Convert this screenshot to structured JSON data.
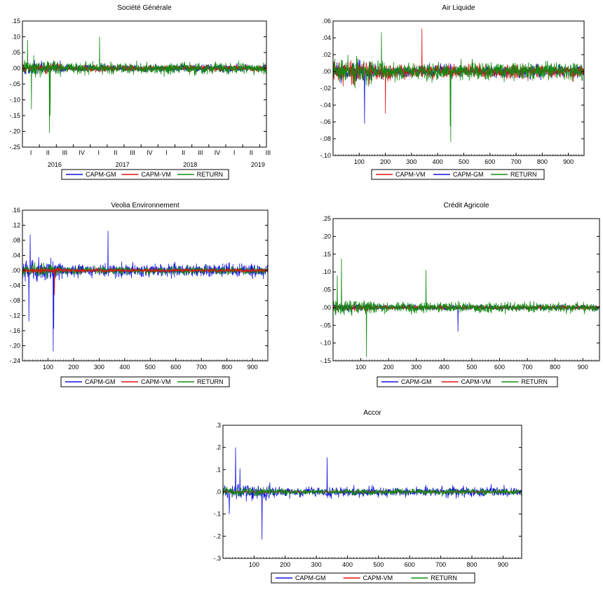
{
  "colors": {
    "CAPM-GM": "#1212e0",
    "CAPM-VM": "#e01010",
    "RETURN": "#118a11"
  },
  "chart_data": [
    {
      "type": "line",
      "title": "Société Générale",
      "ylim": [
        -0.25,
        0.15
      ],
      "y_ticks": [
        ".15",
        ".10",
        ".05",
        ".00",
        "-.05",
        "-.10",
        "-.15",
        "-.20",
        "-.25"
      ],
      "x_quarter_labels": [
        "I",
        "II",
        "III",
        "IV",
        "I",
        "II",
        "III",
        "IV",
        "I",
        "II",
        "III",
        "IV",
        "I",
        "II",
        "III"
      ],
      "x_year_labels": [
        "2016",
        "2017",
        "2018",
        "2019"
      ],
      "legend": [
        "CAPM-GM",
        "CAPM-VM",
        "RETURN"
      ],
      "series_order": [
        "CAPM-GM",
        "CAPM-VM",
        "RETURN"
      ],
      "n": 950,
      "spikes": [
        {
          "series": "RETURN",
          "x": 105,
          "y": -0.205
        },
        {
          "series": "RETURN",
          "x": 108,
          "y": -0.15
        },
        {
          "series": "RETURN",
          "x": 35,
          "y": -0.13
        },
        {
          "series": "RETURN",
          "x": 300,
          "y": 0.1
        },
        {
          "series": "RETURN",
          "x": 20,
          "y": 0.09
        }
      ]
    },
    {
      "type": "line",
      "title": "Air Liquide",
      "ylim": [
        -0.1,
        0.06
      ],
      "y_ticks": [
        ".06",
        ".04",
        ".02",
        ".00",
        "-.02",
        "-.04",
        "-.06",
        "-.08",
        "-.10"
      ],
      "x_ticks": [
        "100",
        "200",
        "300",
        "400",
        "500",
        "600",
        "700",
        "800",
        "900"
      ],
      "xlim": [
        0,
        960
      ],
      "legend": [
        "CAPM-VM",
        "CAPM-GM",
        "RETURN"
      ],
      "series_order": [
        "CAPM-GM",
        "CAPM-VM",
        "RETURN"
      ],
      "n": 950,
      "spikes": [
        {
          "series": "RETURN",
          "x": 450,
          "y": -0.084
        },
        {
          "series": "RETURN",
          "x": 448,
          "y": -0.065
        },
        {
          "series": "CAPM-GM",
          "x": 120,
          "y": -0.062
        },
        {
          "series": "CAPM-VM",
          "x": 340,
          "y": 0.051
        },
        {
          "series": "RETURN",
          "x": 185,
          "y": 0.047
        },
        {
          "series": "CAPM-VM",
          "x": 200,
          "y": -0.05
        }
      ]
    },
    {
      "type": "line",
      "title": "Veolia Environnement",
      "ylim": [
        -0.24,
        0.16
      ],
      "y_ticks": [
        ".16",
        ".12",
        ".08",
        ".04",
        ".00",
        "-.04",
        "-.08",
        "-.12",
        "-.16",
        "-.20",
        "-.24"
      ],
      "x_ticks": [
        "100",
        "200",
        "300",
        "400",
        "500",
        "600",
        "700",
        "800",
        "900"
      ],
      "xlim": [
        0,
        960
      ],
      "legend": [
        "CAPM-GM",
        "CAPM-VM",
        "RETURN"
      ],
      "series_order": [
        "CAPM-GM",
        "RETURN",
        "CAPM-VM"
      ],
      "n": 950,
      "spikes": [
        {
          "series": "CAPM-GM",
          "x": 120,
          "y": -0.215
        },
        {
          "series": "CAPM-GM",
          "x": 122,
          "y": -0.155
        },
        {
          "series": "CAPM-GM",
          "x": 25,
          "y": -0.135
        },
        {
          "series": "CAPM-GM",
          "x": 335,
          "y": 0.105
        },
        {
          "series": "CAPM-GM",
          "x": 30,
          "y": 0.095
        },
        {
          "series": "CAPM-VM",
          "x": 125,
          "y": -0.065
        }
      ]
    },
    {
      "type": "line",
      "title": "Crédit Agricole",
      "ylim": [
        -0.15,
        0.25
      ],
      "y_ticks": [
        ".25",
        ".20",
        ".15",
        ".10",
        ".05",
        ".00",
        "-.05",
        "-.10",
        "-.15"
      ],
      "x_ticks": [
        "100",
        "200",
        "300",
        "400",
        "500",
        "600",
        "700",
        "800",
        "900"
      ],
      "xlim": [
        0,
        960
      ],
      "legend": [
        "CAPM-GM",
        "CAPM-VM",
        "RETURN"
      ],
      "series_order": [
        "CAPM-GM",
        "CAPM-VM",
        "RETURN"
      ],
      "n": 950,
      "spikes": [
        {
          "series": "RETURN",
          "x": 30,
          "y": 0.138
        },
        {
          "series": "RETURN",
          "x": 120,
          "y": -0.14
        },
        {
          "series": "RETURN",
          "x": 335,
          "y": 0.105
        },
        {
          "series": "CAPM-GM",
          "x": 450,
          "y": -0.068
        },
        {
          "series": "RETURN",
          "x": 15,
          "y": 0.09
        }
      ]
    },
    {
      "type": "line",
      "title": "Accor",
      "ylim": [
        -0.3,
        0.3
      ],
      "y_ticks": [
        ".3",
        ".2",
        ".1",
        ".0",
        "-.1",
        "-.2",
        "-.3"
      ],
      "x_ticks": [
        "100",
        "200",
        "300",
        "400",
        "500",
        "600",
        "700",
        "800",
        "900"
      ],
      "xlim": [
        0,
        960
      ],
      "legend": [
        "CAPM-GM",
        "CAPM-VM",
        "RETURN"
      ],
      "series_order": [
        "CAPM-GM",
        "CAPM-VM",
        "RETURN"
      ],
      "n": 950,
      "spikes": [
        {
          "series": "CAPM-GM",
          "x": 40,
          "y": 0.2
        },
        {
          "series": "CAPM-GM",
          "x": 125,
          "y": -0.215
        },
        {
          "series": "CAPM-GM",
          "x": 335,
          "y": 0.155
        },
        {
          "series": "CAPM-GM",
          "x": 55,
          "y": 0.105
        },
        {
          "series": "CAPM-GM",
          "x": 20,
          "y": -0.1
        }
      ]
    }
  ]
}
